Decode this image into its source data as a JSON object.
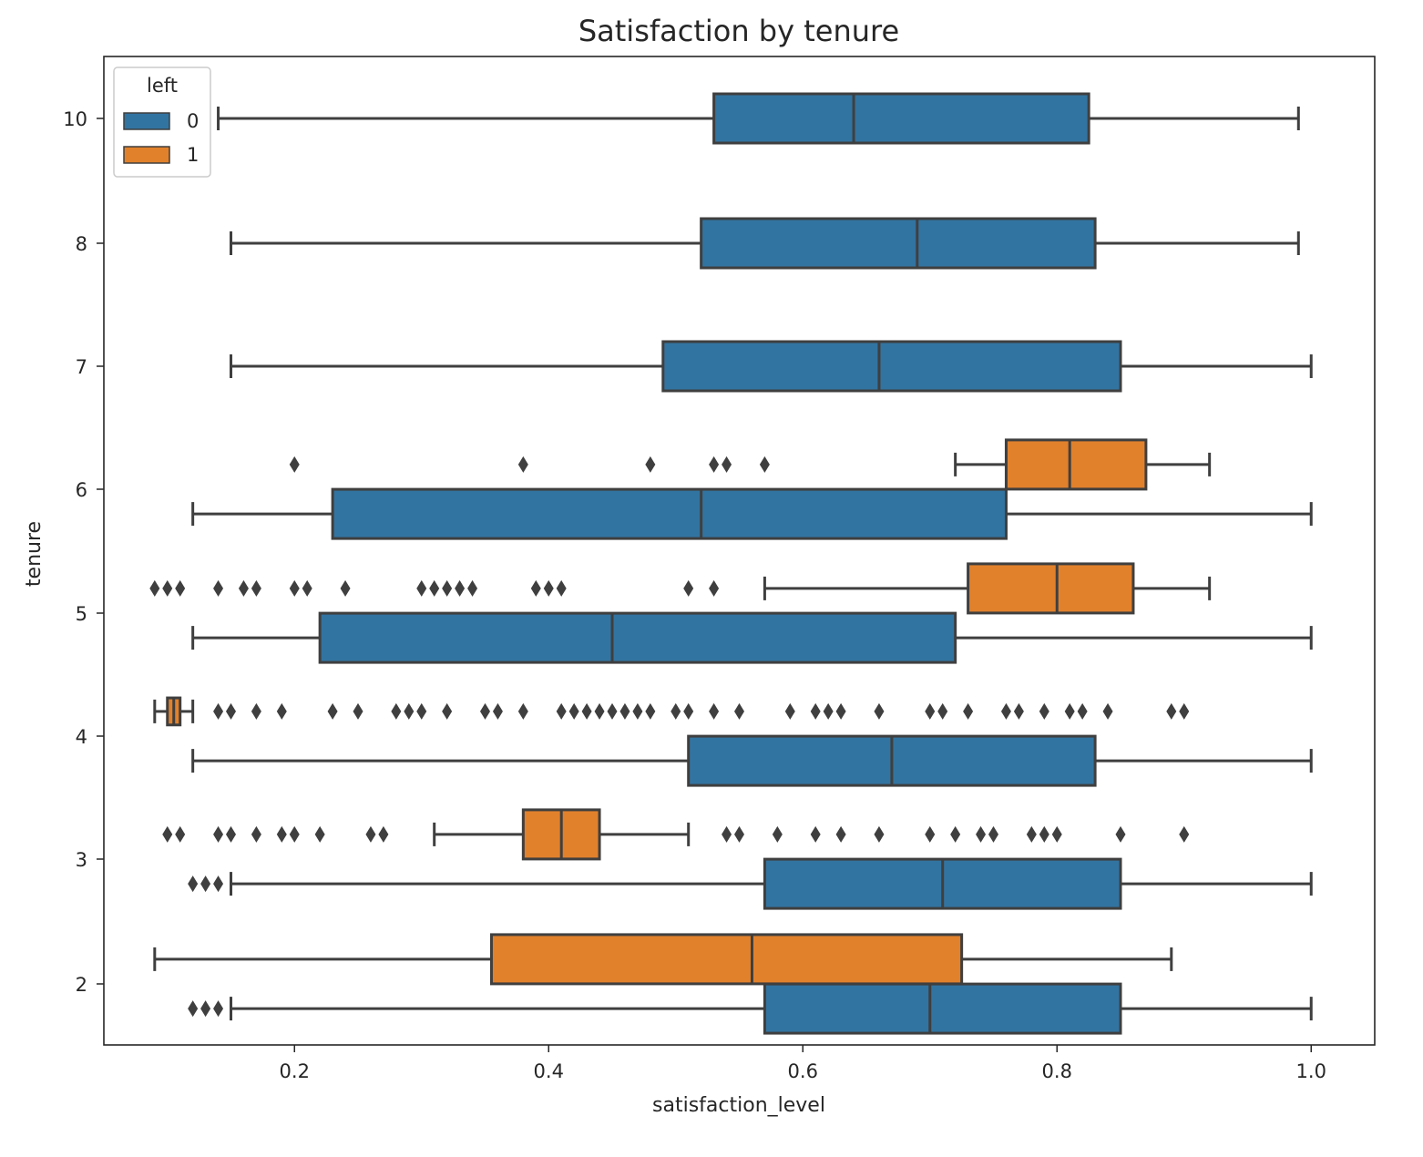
{
  "chart_data": {
    "type": "boxplot",
    "orientation": "horizontal",
    "title": "Satisfaction by tenure",
    "xlabel": "satisfaction_level",
    "ylabel": "tenure",
    "xlim": [
      0.05,
      1.05
    ],
    "xticks": [
      0.2,
      0.4,
      0.6,
      0.8,
      1.0
    ],
    "xtick_labels": [
      "0.2",
      "0.4",
      "0.6",
      "0.8",
      "1.0"
    ],
    "categories": [
      "10",
      "8",
      "7",
      "6",
      "5",
      "4",
      "3",
      "2"
    ],
    "legend": {
      "title": "left",
      "position": "top-left",
      "entries": [
        {
          "label": "0",
          "color": "#3274a1"
        },
        {
          "label": "1",
          "color": "#e1812c"
        }
      ]
    },
    "colors": {
      "hue_0": "#3274a1",
      "hue_1": "#e1812c",
      "line": "#3f3f3f"
    },
    "series": [
      {
        "name": "0",
        "boxes": [
          {
            "category": "10",
            "whisker_low": 0.14,
            "q1": 0.53,
            "median": 0.64,
            "q3": 0.825,
            "whisker_high": 0.99,
            "outliers": []
          },
          {
            "category": "8",
            "whisker_low": 0.15,
            "q1": 0.52,
            "median": 0.69,
            "q3": 0.83,
            "whisker_high": 0.99,
            "outliers": []
          },
          {
            "category": "7",
            "whisker_low": 0.15,
            "q1": 0.49,
            "median": 0.66,
            "q3": 0.85,
            "whisker_high": 1.0,
            "outliers": []
          },
          {
            "category": "6",
            "whisker_low": 0.12,
            "q1": 0.23,
            "median": 0.52,
            "q3": 0.76,
            "whisker_high": 1.0,
            "outliers": []
          },
          {
            "category": "5",
            "whisker_low": 0.12,
            "q1": 0.22,
            "median": 0.45,
            "q3": 0.72,
            "whisker_high": 1.0,
            "outliers": []
          },
          {
            "category": "4",
            "whisker_low": 0.12,
            "q1": 0.51,
            "median": 0.67,
            "q3": 0.83,
            "whisker_high": 1.0,
            "outliers": []
          },
          {
            "category": "3",
            "whisker_low": 0.15,
            "q1": 0.57,
            "median": 0.71,
            "q3": 0.85,
            "whisker_high": 1.0,
            "outliers": [
              0.12,
              0.13,
              0.14
            ]
          },
          {
            "category": "2",
            "whisker_low": 0.15,
            "q1": 0.57,
            "median": 0.7,
            "q3": 0.85,
            "whisker_high": 1.0,
            "outliers": [
              0.12,
              0.13,
              0.14
            ]
          }
        ]
      },
      {
        "name": "1",
        "boxes": [
          {
            "category": "6",
            "whisker_low": 0.72,
            "q1": 0.76,
            "median": 0.81,
            "q3": 0.87,
            "whisker_high": 0.92,
            "outliers": [
              0.2,
              0.38,
              0.48,
              0.53,
              0.54,
              0.57
            ]
          },
          {
            "category": "5",
            "whisker_low": 0.57,
            "q1": 0.73,
            "median": 0.8,
            "q3": 0.86,
            "whisker_high": 0.92,
            "outliers": [
              0.09,
              0.1,
              0.11,
              0.14,
              0.16,
              0.17,
              0.2,
              0.21,
              0.24,
              0.3,
              0.31,
              0.32,
              0.33,
              0.34,
              0.39,
              0.4,
              0.41,
              0.51,
              0.53
            ]
          },
          {
            "category": "4",
            "whisker_low": 0.09,
            "q1": 0.1,
            "median": 0.105,
            "q3": 0.11,
            "whisker_high": 0.12,
            "outliers": [
              0.14,
              0.15,
              0.17,
              0.19,
              0.23,
              0.25,
              0.28,
              0.29,
              0.3,
              0.32,
              0.35,
              0.36,
              0.38,
              0.41,
              0.42,
              0.43,
              0.44,
              0.45,
              0.46,
              0.47,
              0.48,
              0.5,
              0.51,
              0.53,
              0.55,
              0.59,
              0.61,
              0.62,
              0.63,
              0.66,
              0.7,
              0.71,
              0.73,
              0.76,
              0.77,
              0.79,
              0.81,
              0.82,
              0.84,
              0.89,
              0.9
            ]
          },
          {
            "category": "3",
            "whisker_low": 0.31,
            "q1": 0.38,
            "median": 0.41,
            "q3": 0.44,
            "whisker_high": 0.51,
            "outliers": [
              0.1,
              0.11,
              0.14,
              0.15,
              0.17,
              0.19,
              0.2,
              0.22,
              0.26,
              0.27,
              0.54,
              0.55,
              0.58,
              0.61,
              0.63,
              0.66,
              0.7,
              0.72,
              0.74,
              0.75,
              0.78,
              0.79,
              0.8,
              0.85,
              0.9
            ]
          },
          {
            "category": "2",
            "whisker_low": 0.09,
            "q1": 0.355,
            "median": 0.56,
            "q3": 0.725,
            "whisker_high": 0.89,
            "outliers": []
          }
        ]
      }
    ]
  }
}
